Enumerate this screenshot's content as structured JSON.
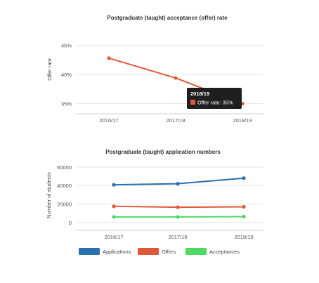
{
  "chart_data": [
    {
      "type": "line",
      "title": "Postgraduate (taught) acceptance (offer) rate",
      "ylabel": "Offer rate",
      "categories": [
        "2016/17",
        "2017/18",
        "2018/19"
      ],
      "y_ticks": [
        "35%",
        "40%",
        "45%"
      ],
      "ylim": [
        33.5,
        47
      ],
      "series": [
        {
          "name": "Offer rate",
          "values": [
            42.8,
            39.4,
            35
          ],
          "color": "#e0583a"
        }
      ],
      "tooltip": {
        "title": "2018/19",
        "label": "Offer rate: 35%",
        "point_index": 2
      }
    },
    {
      "type": "line",
      "title": "Postgraduate (taught) application numbers",
      "ylabel": "Number of students",
      "categories": [
        "2016/17",
        "2017/18",
        "2018/19"
      ],
      "y_ticks": [
        "0",
        "20000",
        "40000",
        "60000"
      ],
      "ylim": [
        -7000,
        63000
      ],
      "series": [
        {
          "name": "Applications",
          "values": [
            40800,
            42000,
            48000
          ],
          "color": "#2a6fae"
        },
        {
          "name": "Offers",
          "values": [
            17500,
            16500,
            17000
          ],
          "color": "#e0583a"
        },
        {
          "name": "Acceptances",
          "values": [
            6000,
            6000,
            6300
          ],
          "color": "#4cd964"
        }
      ],
      "legend_position": "bottom"
    }
  ]
}
